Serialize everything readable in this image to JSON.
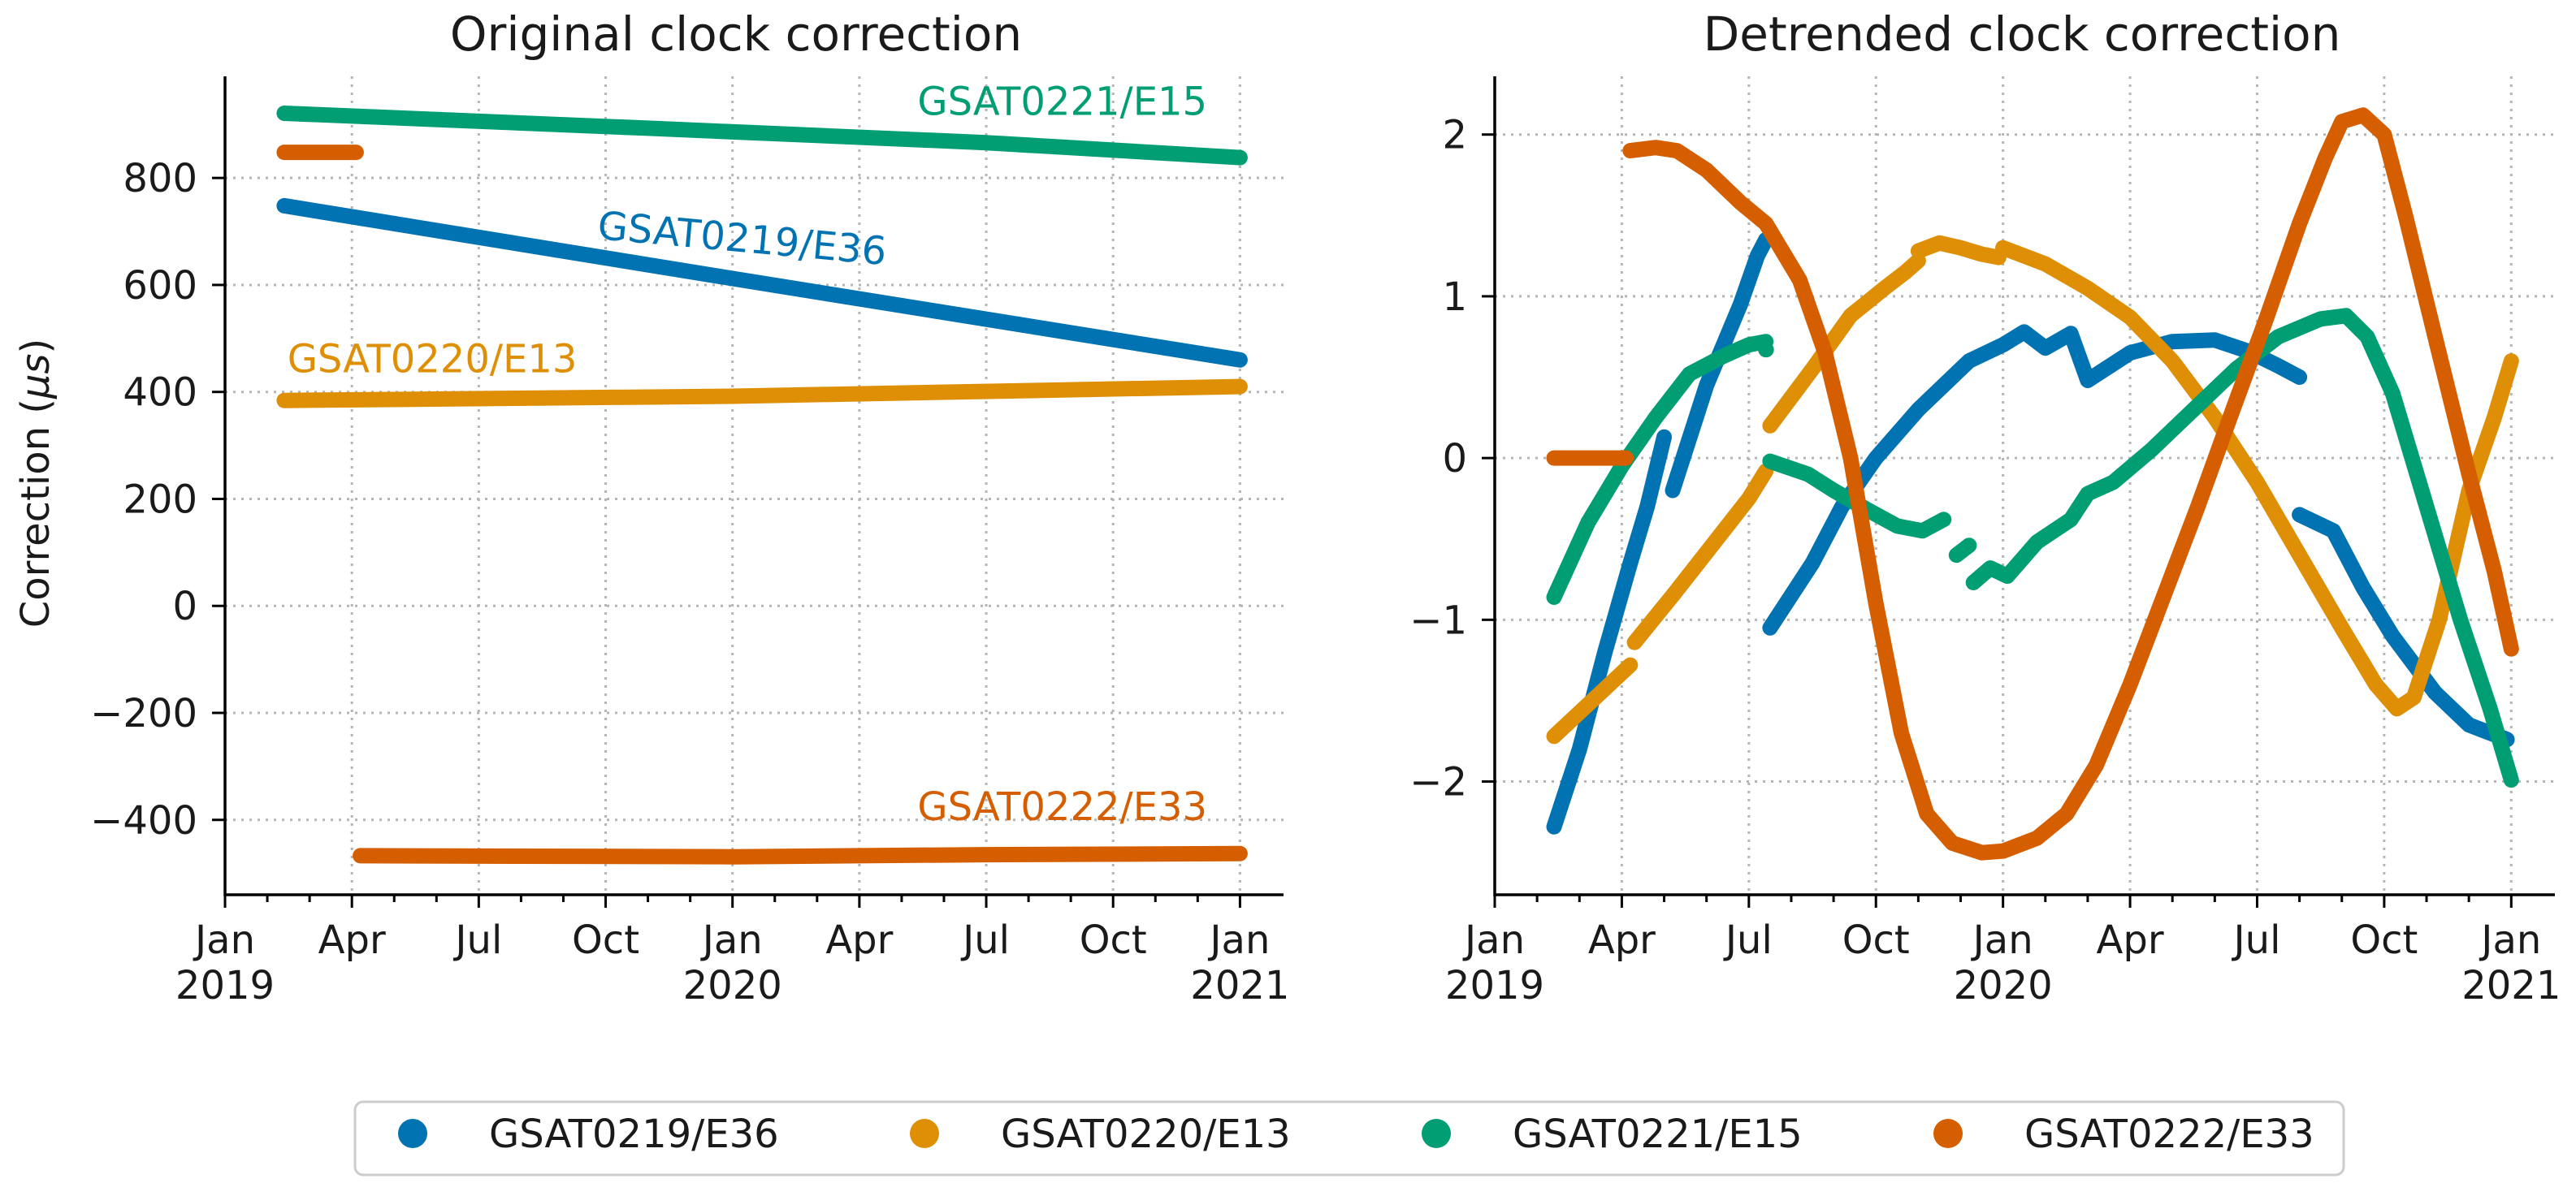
{
  "colors": {
    "GSAT0219/E36": "#0173b2",
    "GSAT0220/E13": "#de8f05",
    "GSAT0221/E15": "#029e73",
    "GSAT0222/E33": "#d55e00"
  },
  "x_tick_labels": [
    {
      "month": "Jan",
      "year": "2019"
    },
    {
      "month": "Apr",
      "year": ""
    },
    {
      "month": "Jul",
      "year": ""
    },
    {
      "month": "Oct",
      "year": ""
    },
    {
      "month": "Jan",
      "year": "2020"
    },
    {
      "month": "Apr",
      "year": ""
    },
    {
      "month": "Jul",
      "year": ""
    },
    {
      "month": "Oct",
      "year": ""
    },
    {
      "month": "Jan",
      "year": "2021"
    }
  ],
  "legend": {
    "entries": [
      "GSAT0219/E36",
      "GSAT0220/E13",
      "GSAT0221/E15",
      "GSAT0222/E33"
    ],
    "placement": "bottom-center"
  },
  "chart_data": [
    {
      "type": "line",
      "title": "Original clock correction",
      "xlabel": "",
      "ylabel": "Correction (μs)",
      "xlim_months": [
        0,
        25
      ],
      "ylim": [
        -540,
        990
      ],
      "yticks": [
        -400,
        -200,
        0,
        200,
        400,
        600,
        800
      ],
      "ytick_labels": [
        "−400",
        "−200",
        "0",
        "200",
        "400",
        "600",
        "800"
      ],
      "grid": true,
      "annotations": [
        {
          "text": "GSAT0221/E15",
          "series": "GSAT0221/E15",
          "x": 19.8,
          "y": 918,
          "anchor": "middle",
          "rotate": 0
        },
        {
          "text": "GSAT0219/E36",
          "series": "GSAT0219/E36",
          "x": 12.2,
          "y": 662,
          "anchor": "middle",
          "rotate": 5.2
        },
        {
          "text": "GSAT0220/E13",
          "series": "GSAT0220/E13",
          "x": 4.9,
          "y": 437,
          "anchor": "middle",
          "rotate": 0
        },
        {
          "text": "GSAT0222/E33",
          "series": "GSAT0222/E33",
          "x": 19.8,
          "y": -400,
          "anchor": "middle",
          "rotate": 0
        }
      ],
      "series": [
        {
          "name": "GSAT0221/E15",
          "segments": [
            [
              [
                1.4,
                921
              ],
              [
                10,
                893
              ],
              [
                18,
                866
              ],
              [
                24,
                838
              ]
            ]
          ]
        },
        {
          "name": "GSAT0222/E33",
          "segments": [
            [
              [
                1.4,
                848
              ],
              [
                3.1,
                848
              ]
            ],
            [
              [
                3.2,
                -467
              ],
              [
                12,
                -469
              ],
              [
                18,
                -465
              ],
              [
                24,
                -463
              ]
            ]
          ]
        },
        {
          "name": "GSAT0219/E36",
          "segments": [
            [
              [
                1.4,
                748
              ],
              [
                12,
                612
              ],
              [
                24,
                460
              ]
            ]
          ]
        },
        {
          "name": "GSAT0220/E13",
          "segments": [
            [
              [
                1.4,
                384
              ],
              [
                12,
                392
              ],
              [
                24,
                410
              ]
            ]
          ]
        }
      ]
    },
    {
      "type": "line",
      "title": "Detrended clock correction",
      "xlabel": "",
      "ylabel": "",
      "xlim_months": [
        0,
        25
      ],
      "ylim": [
        -2.7,
        2.36
      ],
      "yticks": [
        -2,
        -1,
        0,
        1,
        2
      ],
      "ytick_labels": [
        "−2",
        "−1",
        "0",
        "1",
        "2"
      ],
      "grid": true,
      "series": [
        {
          "name": "GSAT0219/E36",
          "segments": [
            [
              [
                1.4,
                -2.28
              ],
              [
                2.0,
                -1.8
              ],
              [
                2.6,
                -1.2
              ],
              [
                3.2,
                -0.65
              ],
              [
                3.6,
                -0.3
              ],
              [
                4.0,
                0.13
              ]
            ],
            [
              [
                4.2,
                -0.2
              ],
              [
                5.0,
                0.45
              ],
              [
                5.8,
                0.95
              ],
              [
                6.2,
                1.25
              ],
              [
                6.4,
                1.35
              ]
            ],
            [
              [
                6.5,
                -1.05
              ],
              [
                7.5,
                -0.65
              ],
              [
                8.2,
                -0.3
              ],
              [
                9.0,
                0.0
              ],
              [
                10.0,
                0.3
              ],
              [
                11.2,
                0.6
              ],
              [
                12.0,
                0.7
              ],
              [
                12.5,
                0.78
              ],
              [
                13.0,
                0.68
              ],
              [
                13.6,
                0.77
              ],
              [
                14.0,
                0.48
              ],
              [
                15.0,
                0.65
              ],
              [
                16.0,
                0.72
              ],
              [
                17.0,
                0.73
              ],
              [
                17.8,
                0.66
              ],
              [
                18.5,
                0.57
              ],
              [
                19.0,
                0.5
              ]
            ],
            [
              [
                19.0,
                -0.35
              ],
              [
                19.8,
                -0.45
              ],
              [
                20.5,
                -0.8
              ],
              [
                21.2,
                -1.1
              ],
              [
                22.2,
                -1.45
              ],
              [
                23.0,
                -1.65
              ],
              [
                23.9,
                -1.74
              ]
            ]
          ]
        },
        {
          "name": "GSAT0220/E13",
          "segments": [
            [
              [
                1.4,
                -1.72
              ],
              [
                2.3,
                -1.5
              ],
              [
                3.2,
                -1.28
              ]
            ],
            [
              [
                3.3,
                -1.14
              ],
              [
                4.2,
                -0.85
              ],
              [
                5.1,
                -0.55
              ],
              [
                6.0,
                -0.25
              ],
              [
                6.4,
                -0.08
              ]
            ],
            [
              [
                6.5,
                0.2
              ],
              [
                7.5,
                0.55
              ],
              [
                8.4,
                0.88
              ],
              [
                9.2,
                1.05
              ],
              [
                9.7,
                1.15
              ],
              [
                10.0,
                1.22
              ]
            ],
            [
              [
                10.0,
                1.28
              ],
              [
                10.5,
                1.33
              ],
              [
                11.0,
                1.3
              ],
              [
                11.5,
                1.26
              ],
              [
                11.9,
                1.24
              ]
            ],
            [
              [
                12.0,
                1.3
              ],
              [
                13.0,
                1.2
              ],
              [
                14.0,
                1.05
              ],
              [
                15.0,
                0.87
              ],
              [
                16.0,
                0.6
              ],
              [
                17.0,
                0.25
              ],
              [
                18.0,
                -0.15
              ],
              [
                19.0,
                -0.6
              ],
              [
                20.0,
                -1.05
              ],
              [
                20.8,
                -1.4
              ],
              [
                21.3,
                -1.55
              ],
              [
                21.7,
                -1.48
              ],
              [
                22.3,
                -1.0
              ],
              [
                23.0,
                -0.2
              ],
              [
                23.6,
                0.25
              ],
              [
                24.0,
                0.6
              ]
            ]
          ]
        },
        {
          "name": "GSAT0221/E15",
          "segments": [
            [
              [
                1.4,
                -0.86
              ],
              [
                2.2,
                -0.4
              ],
              [
                3.0,
                -0.05
              ],
              [
                3.8,
                0.25
              ],
              [
                4.6,
                0.52
              ],
              [
                5.4,
                0.63
              ],
              [
                6.0,
                0.7
              ],
              [
                6.4,
                0.72
              ]
            ],
            [
              [
                6.4,
                0.67
              ]
            ],
            [
              [
                6.5,
                -0.02
              ],
              [
                7.4,
                -0.1
              ],
              [
                8.0,
                -0.2
              ],
              [
                8.8,
                -0.32
              ],
              [
                9.5,
                -0.42
              ],
              [
                10.1,
                -0.45
              ],
              [
                10.6,
                -0.38
              ]
            ],
            [
              [
                10.9,
                -0.6
              ],
              [
                11.2,
                -0.54
              ]
            ],
            [
              [
                11.3,
                -0.77
              ],
              [
                11.7,
                -0.68
              ],
              [
                12.1,
                -0.73
              ],
              [
                12.8,
                -0.52
              ],
              [
                13.6,
                -0.38
              ],
              [
                14.0,
                -0.22
              ],
              [
                14.6,
                -0.15
              ],
              [
                15.5,
                0.05
              ],
              [
                16.5,
                0.3
              ],
              [
                17.5,
                0.55
              ],
              [
                18.5,
                0.75
              ],
              [
                19.5,
                0.86
              ],
              [
                20.1,
                0.88
              ],
              [
                20.6,
                0.75
              ],
              [
                21.2,
                0.4
              ],
              [
                22.0,
                -0.3
              ],
              [
                22.8,
                -1.0
              ],
              [
                23.5,
                -1.55
              ],
              [
                24.0,
                -1.99
              ]
            ]
          ]
        },
        {
          "name": "GSAT0222/E33",
          "segments": [
            [
              [
                1.4,
                0.0
              ],
              [
                3.1,
                0.0
              ]
            ],
            [
              [
                3.2,
                1.9
              ],
              [
                3.8,
                1.92
              ],
              [
                4.3,
                1.9
              ],
              [
                5.0,
                1.78
              ],
              [
                5.8,
                1.58
              ],
              [
                6.4,
                1.45
              ],
              [
                7.2,
                1.1
              ],
              [
                7.8,
                0.65
              ],
              [
                8.4,
                0.0
              ],
              [
                9.0,
                -0.9
              ],
              [
                9.6,
                -1.7
              ],
              [
                10.2,
                -2.2
              ],
              [
                10.8,
                -2.38
              ],
              [
                11.5,
                -2.44
              ],
              [
                12.0,
                -2.43
              ],
              [
                12.8,
                -2.35
              ],
              [
                13.5,
                -2.2
              ],
              [
                14.2,
                -1.9
              ],
              [
                15.0,
                -1.4
              ],
              [
                15.8,
                -0.85
              ],
              [
                16.6,
                -0.3
              ],
              [
                17.4,
                0.28
              ],
              [
                18.2,
                0.85
              ],
              [
                19.0,
                1.45
              ],
              [
                19.6,
                1.85
              ],
              [
                20.0,
                2.08
              ],
              [
                20.5,
                2.12
              ],
              [
                21.0,
                2.0
              ],
              [
                21.5,
                1.5
              ],
              [
                22.2,
                0.75
              ],
              [
                23.0,
                -0.1
              ],
              [
                23.6,
                -0.7
              ],
              [
                24.0,
                -1.18
              ]
            ]
          ]
        }
      ]
    }
  ]
}
